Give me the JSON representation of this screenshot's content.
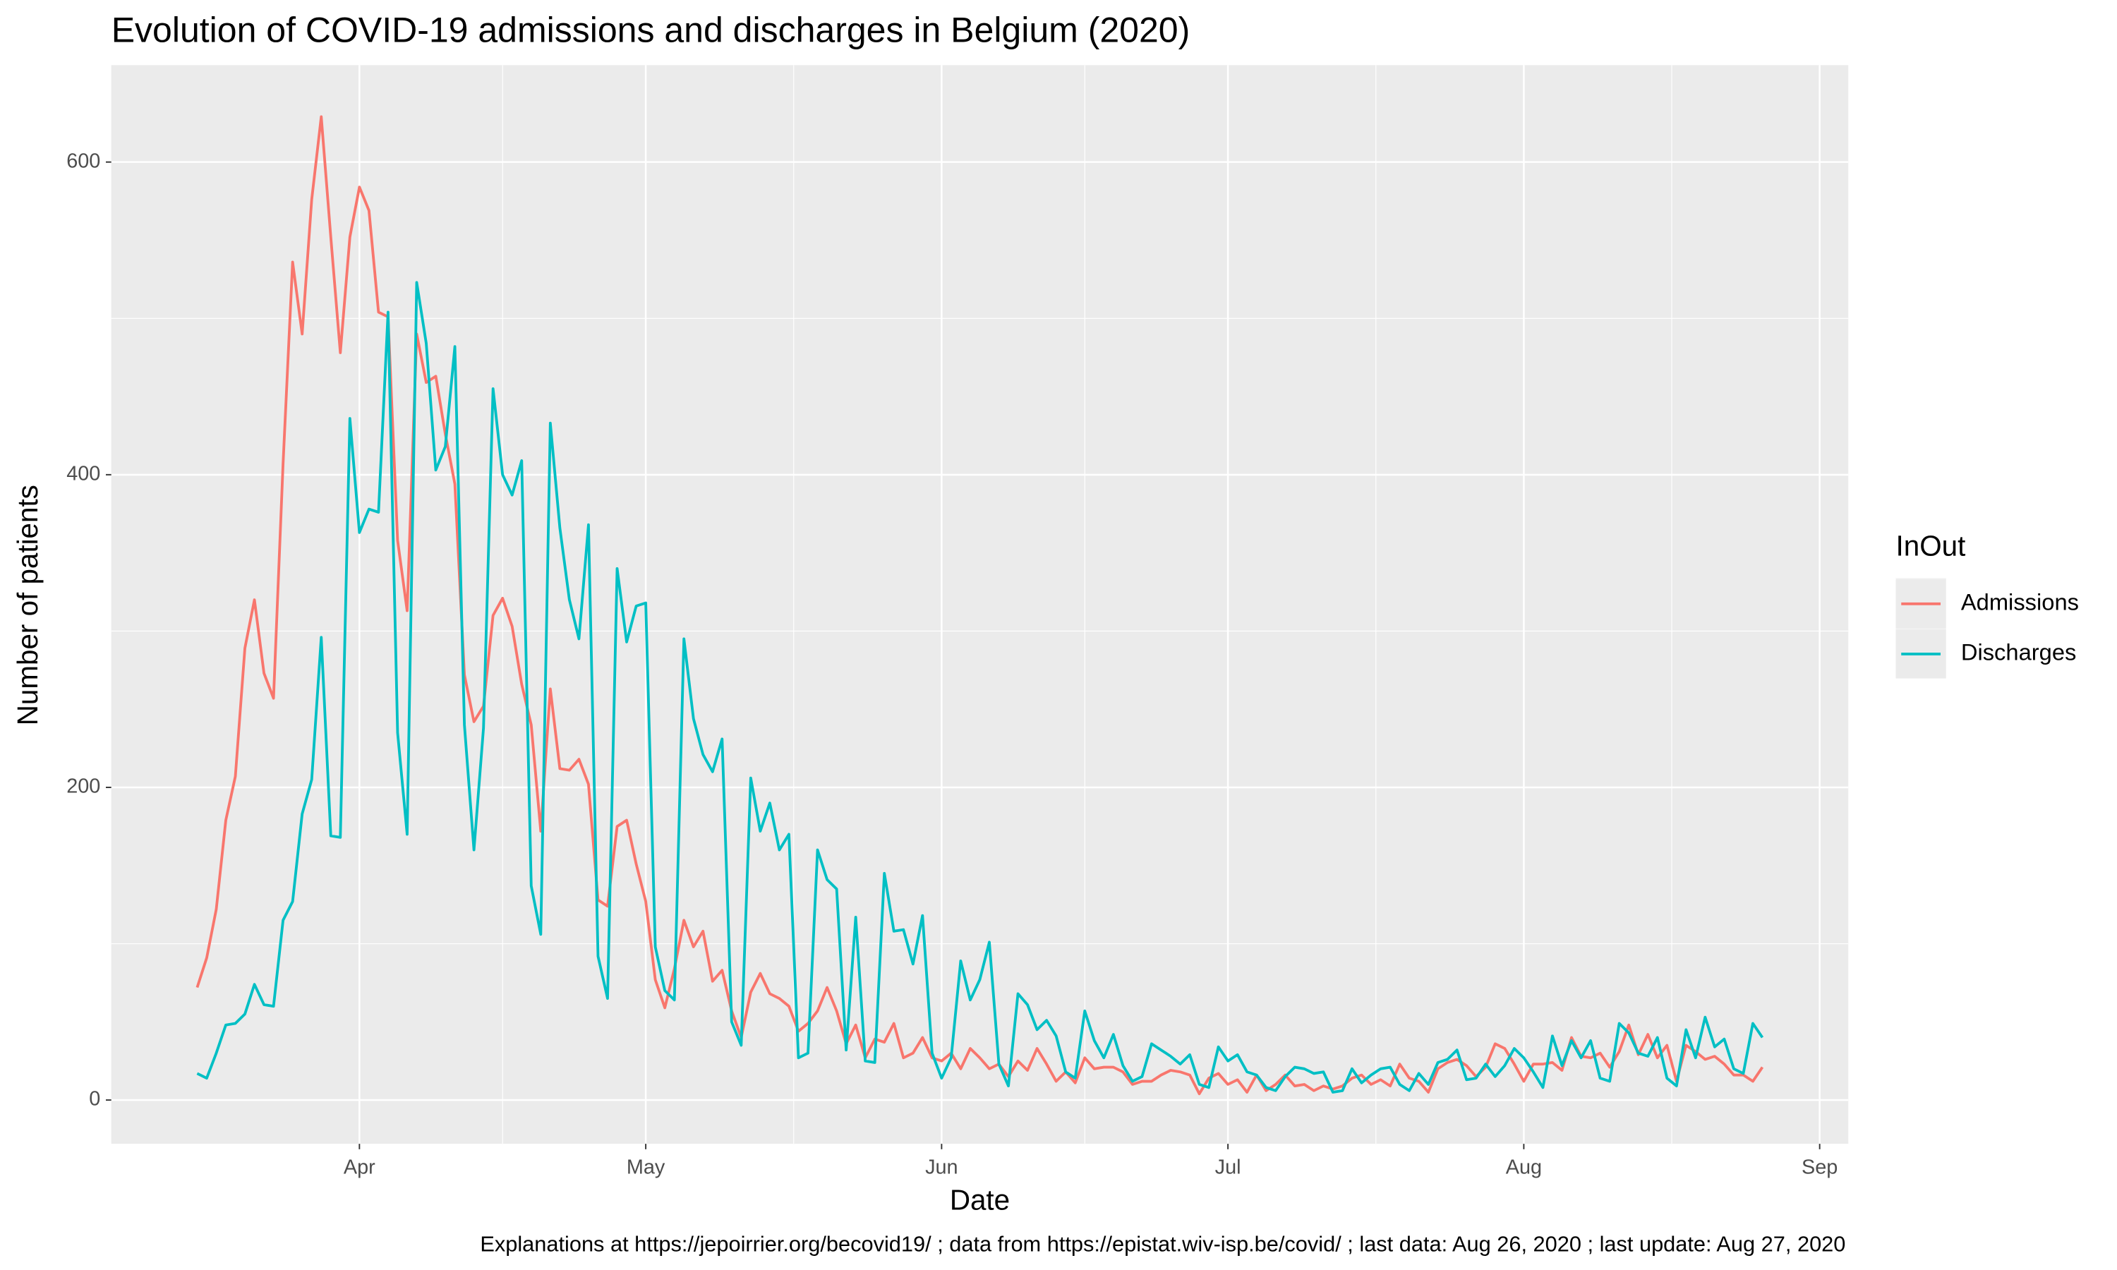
{
  "chart_data": {
    "type": "line",
    "title": "Evolution of COVID-19 admissions and discharges in Belgium (2020)",
    "x_label": "Date",
    "y_label": "Number of patients",
    "legend_title": "InOut",
    "caption": "Explanations at https://jepoirrier.org/becovid19/ ; data from https://epistat.wiv-isp.be/covid/ ; last data: Aug 26, 2020  ; last update: Aug 27, 2020",
    "x": [
      "2020-03-15",
      "2020-03-16",
      "2020-03-17",
      "2020-03-18",
      "2020-03-19",
      "2020-03-20",
      "2020-03-21",
      "2020-03-22",
      "2020-03-23",
      "2020-03-24",
      "2020-03-25",
      "2020-03-26",
      "2020-03-27",
      "2020-03-28",
      "2020-03-29",
      "2020-03-30",
      "2020-03-31",
      "2020-04-01",
      "2020-04-02",
      "2020-04-03",
      "2020-04-04",
      "2020-04-05",
      "2020-04-06",
      "2020-04-07",
      "2020-04-08",
      "2020-04-09",
      "2020-04-10",
      "2020-04-11",
      "2020-04-12",
      "2020-04-13",
      "2020-04-14",
      "2020-04-15",
      "2020-04-16",
      "2020-04-17",
      "2020-04-18",
      "2020-04-19",
      "2020-04-20",
      "2020-04-21",
      "2020-04-22",
      "2020-04-23",
      "2020-04-24",
      "2020-04-25",
      "2020-04-26",
      "2020-04-27",
      "2020-04-28",
      "2020-04-29",
      "2020-04-30",
      "2020-05-01",
      "2020-05-02",
      "2020-05-03",
      "2020-05-04",
      "2020-05-05",
      "2020-05-06",
      "2020-05-07",
      "2020-05-08",
      "2020-05-09",
      "2020-05-10",
      "2020-05-11",
      "2020-05-12",
      "2020-05-13",
      "2020-05-14",
      "2020-05-15",
      "2020-05-16",
      "2020-05-17",
      "2020-05-18",
      "2020-05-19",
      "2020-05-20",
      "2020-05-21",
      "2020-05-22",
      "2020-05-23",
      "2020-05-24",
      "2020-05-25",
      "2020-05-26",
      "2020-05-27",
      "2020-05-28",
      "2020-05-29",
      "2020-05-30",
      "2020-05-31",
      "2020-06-01",
      "2020-06-02",
      "2020-06-03",
      "2020-06-04",
      "2020-06-05",
      "2020-06-06",
      "2020-06-07",
      "2020-06-08",
      "2020-06-09",
      "2020-06-10",
      "2020-06-11",
      "2020-06-12",
      "2020-06-13",
      "2020-06-14",
      "2020-06-15",
      "2020-06-16",
      "2020-06-17",
      "2020-06-18",
      "2020-06-19",
      "2020-06-20",
      "2020-06-21",
      "2020-06-22",
      "2020-06-23",
      "2020-06-24",
      "2020-06-25",
      "2020-06-26",
      "2020-06-27",
      "2020-06-28",
      "2020-06-29",
      "2020-06-30",
      "2020-07-01",
      "2020-07-02",
      "2020-07-03",
      "2020-07-04",
      "2020-07-05",
      "2020-07-06",
      "2020-07-07",
      "2020-07-08",
      "2020-07-09",
      "2020-07-10",
      "2020-07-11",
      "2020-07-12",
      "2020-07-13",
      "2020-07-14",
      "2020-07-15",
      "2020-07-16",
      "2020-07-17",
      "2020-07-18",
      "2020-07-19",
      "2020-07-20",
      "2020-07-21",
      "2020-07-22",
      "2020-07-23",
      "2020-07-24",
      "2020-07-25",
      "2020-07-26",
      "2020-07-27",
      "2020-07-28",
      "2020-07-29",
      "2020-07-30",
      "2020-07-31",
      "2020-08-01",
      "2020-08-02",
      "2020-08-03",
      "2020-08-04",
      "2020-08-05",
      "2020-08-06",
      "2020-08-07",
      "2020-08-08",
      "2020-08-09",
      "2020-08-10",
      "2020-08-11",
      "2020-08-12",
      "2020-08-13",
      "2020-08-14",
      "2020-08-15",
      "2020-08-16",
      "2020-08-17",
      "2020-08-18",
      "2020-08-19",
      "2020-08-20",
      "2020-08-21",
      "2020-08-22",
      "2020-08-23",
      "2020-08-24",
      "2020-08-25",
      "2020-08-26"
    ],
    "series": [
      {
        "name": "Admissions",
        "color": "#F8766D",
        "values": [
          72,
          91,
          122,
          179,
          207,
          289,
          320,
          273,
          257,
          407,
          536,
          490,
          576,
          629,
          552,
          478,
          552,
          584,
          569,
          504,
          501,
          358,
          313,
          490,
          459,
          463,
          426,
          394,
          272,
          242,
          252,
          310,
          321,
          303,
          266,
          240,
          172,
          263,
          212,
          211,
          218,
          202,
          128,
          124,
          175,
          179,
          151,
          127,
          77,
          59,
          84,
          115,
          98,
          108,
          76,
          83,
          57,
          40,
          69,
          81,
          68,
          65,
          60,
          44,
          49,
          57,
          72,
          57,
          36,
          48,
          27,
          39,
          37,
          49,
          27,
          30,
          40,
          27,
          25,
          30,
          20,
          33,
          27,
          20,
          23,
          15,
          25,
          19,
          33,
          23,
          12,
          18,
          11,
          27,
          20,
          21,
          21,
          18,
          10,
          12,
          12,
          16,
          19,
          18,
          16,
          4,
          14,
          17,
          10,
          13,
          5,
          16,
          6,
          10,
          16,
          9,
          10,
          6,
          9,
          7,
          9,
          14,
          16,
          10,
          13,
          9,
          23,
          14,
          12,
          5,
          20,
          24,
          26,
          22,
          15,
          21,
          36,
          33,
          23,
          12,
          23,
          23,
          24,
          19,
          40,
          28,
          27,
          30,
          21,
          31,
          48,
          29,
          42,
          27,
          35,
          12,
          35,
          31,
          26,
          28,
          23,
          16,
          16,
          12,
          21
        ]
      },
      {
        "name": "Discharges",
        "color": "#00BFC4",
        "values": [
          17,
          14,
          30,
          48,
          49,
          55,
          74,
          61,
          60,
          115,
          127,
          183,
          205,
          296,
          169,
          168,
          436,
          363,
          378,
          376,
          504,
          235,
          170,
          523,
          484,
          403,
          418,
          482,
          240,
          160,
          238,
          455,
          400,
          387,
          409,
          137,
          106,
          433,
          366,
          320,
          295,
          368,
          92,
          65,
          340,
          293,
          316,
          318,
          98,
          70,
          64,
          295,
          244,
          221,
          210,
          231,
          50,
          35,
          206,
          172,
          190,
          160,
          170,
          27,
          30,
          160,
          141,
          135,
          32,
          117,
          25,
          24,
          145,
          108,
          109,
          87,
          118,
          30,
          14,
          27,
          89,
          64,
          77,
          101,
          23,
          9,
          68,
          61,
          45,
          51,
          41,
          18,
          14,
          57,
          38,
          27,
          42,
          22,
          12,
          15,
          36,
          32,
          28,
          23,
          29,
          10,
          8,
          34,
          25,
          29,
          18,
          16,
          8,
          6,
          15,
          21,
          20,
          17,
          18,
          5,
          6,
          20,
          11,
          16,
          20,
          21,
          10,
          6,
          17,
          10,
          24,
          26,
          32,
          13,
          14,
          23,
          15,
          22,
          33,
          27,
          18,
          8,
          41,
          22,
          38,
          27,
          38,
          14,
          12,
          49,
          43,
          30,
          28,
          40,
          14,
          9,
          45,
          27,
          53,
          34,
          39,
          20,
          17,
          49,
          40
        ]
      }
    ],
    "xlim": [
      "2020-03-06",
      "2020-09-04"
    ],
    "xticks": [
      {
        "value": "2020-04-01",
        "label": "Apr"
      },
      {
        "value": "2020-05-01",
        "label": "May"
      },
      {
        "value": "2020-06-01",
        "label": "Jun"
      },
      {
        "value": "2020-07-01",
        "label": "Jul"
      },
      {
        "value": "2020-08-01",
        "label": "Aug"
      },
      {
        "value": "2020-09-01",
        "label": "Sep"
      }
    ],
    "ylim": [
      -28,
      662
    ],
    "yticks": [
      0,
      200,
      400,
      600
    ],
    "grid": true,
    "legend_position": "right"
  }
}
